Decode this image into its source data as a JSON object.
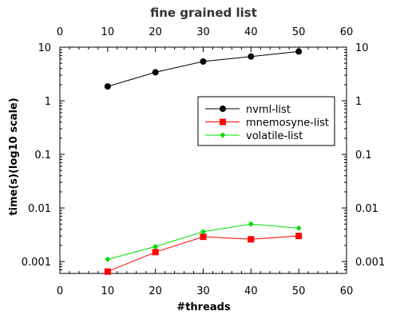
{
  "chart_data": {
    "type": "line",
    "title": "fine grained list",
    "xlabel": "#threads",
    "ylabel": "time(s)(log10 scale)",
    "x": [
      10,
      20,
      30,
      40,
      50
    ],
    "xlim": [
      0,
      60
    ],
    "ylim": [
      0.0006,
      10
    ],
    "yscale": "log",
    "xticks": [
      "0",
      "10",
      "20",
      "30",
      "40",
      "50",
      "60"
    ],
    "yticks": [
      "0.001",
      "0.01",
      "0.1",
      "1",
      "10"
    ],
    "x2ticks": [
      "0",
      "10",
      "20",
      "30",
      "40",
      "50",
      "60"
    ],
    "y2ticks": [
      "0.001",
      "0.01",
      "0.1",
      "1",
      "10"
    ],
    "grid": false,
    "legend_position": "right-center",
    "series": [
      {
        "name": "nvml-list",
        "values": [
          1.85,
          3.4,
          5.4,
          6.7,
          8.3
        ],
        "color": "#000000",
        "marker": "circle"
      },
      {
        "name": "mnemosyne-list",
        "values": [
          0.00065,
          0.0015,
          0.0029,
          0.0026,
          0.003
        ],
        "color": "#ff0000",
        "marker": "square"
      },
      {
        "name": "volatile-list",
        "values": [
          0.0011,
          0.0019,
          0.0036,
          0.005,
          0.0042
        ],
        "color": "#00dd00",
        "marker": "diamond"
      }
    ]
  }
}
